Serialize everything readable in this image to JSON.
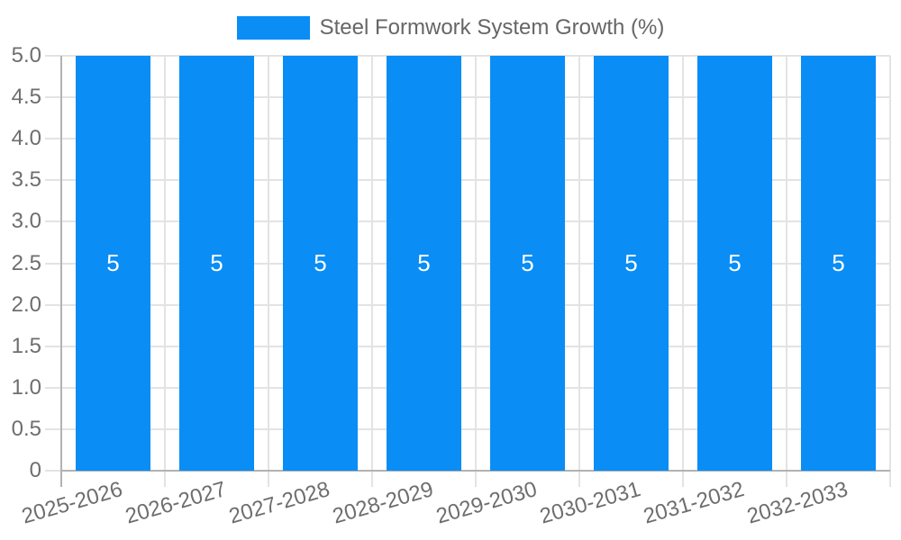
{
  "chart_data": {
    "type": "bar",
    "title": "Steel Formwork System Growth (%)",
    "legend": {
      "label": "Steel Formwork System Growth (%)",
      "position": "top"
    },
    "categories": [
      "2025-2026",
      "2026-2027",
      "2027-2028",
      "2028-2029",
      "2029-2030",
      "2030-2031",
      "2031-2032",
      "2032-2033"
    ],
    "series": [
      {
        "name": "Steel Formwork System Growth (%)",
        "values": [
          5,
          5,
          5,
          5,
          5,
          5,
          5,
          5
        ]
      }
    ],
    "bar_value_labels": [
      "5",
      "5",
      "5",
      "5",
      "5",
      "5",
      "5",
      "5"
    ],
    "xlabel": "",
    "ylabel": "",
    "ylim": [
      0,
      5
    ],
    "yticks": [
      {
        "value": 5.0,
        "label": "5.0"
      },
      {
        "value": 4.5,
        "label": "4.5"
      },
      {
        "value": 4.0,
        "label": "4.0"
      },
      {
        "value": 3.5,
        "label": "3.5"
      },
      {
        "value": 3.0,
        "label": "3.0"
      },
      {
        "value": 2.5,
        "label": "2.5"
      },
      {
        "value": 2.0,
        "label": "2.0"
      },
      {
        "value": 1.5,
        "label": "1.5"
      },
      {
        "value": 1.0,
        "label": "1.0"
      },
      {
        "value": 0.5,
        "label": "0.5"
      },
      {
        "value": 0.0,
        "label": "0"
      }
    ],
    "grid": true,
    "x_label_rotation_deg": -16,
    "colors": {
      "bar": "#0a8df5",
      "grid": "#e3e3e3",
      "tick": "#cfcfcf",
      "axis": "#b3b3b3",
      "tick_label": "#6e6e6e",
      "legend_text": "#666666",
      "bar_label": "#ffffff",
      "background": "#ffffff"
    }
  }
}
